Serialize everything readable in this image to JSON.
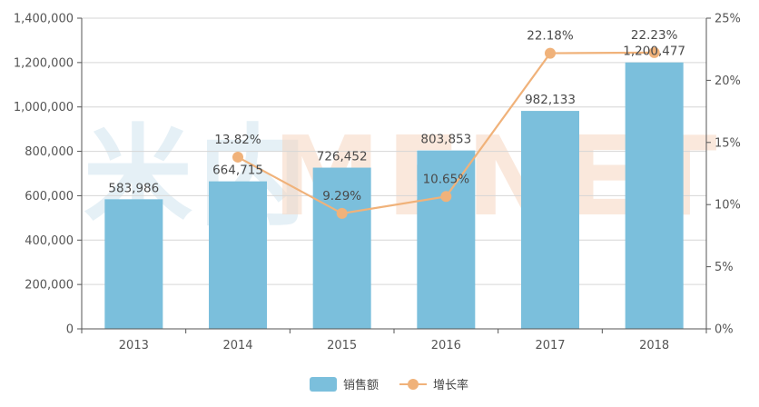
{
  "watermark": {
    "cjk": "米内",
    "latin": "MENET"
  },
  "chart_data": {
    "type": "bar",
    "categories": [
      "2013",
      "2014",
      "2015",
      "2016",
      "2017",
      "2018"
    ],
    "series": [
      {
        "name": "销售额",
        "kind": "bar",
        "axis": "left",
        "color": "#7bbfdc",
        "values": [
          583986,
          664715,
          726452,
          803853,
          982133,
          1200477
        ],
        "labels": [
          "583,986",
          "664,715",
          "726,452",
          "803,853",
          "982,133",
          "1,200,477"
        ]
      },
      {
        "name": "增长率",
        "kind": "line",
        "axis": "right",
        "color": "#f0b27a",
        "values": [
          null,
          13.82,
          9.29,
          10.65,
          22.18,
          22.23
        ],
        "labels": [
          "",
          "13.82%",
          "9.29%",
          "10.65%",
          "22.18%",
          "22.23%"
        ]
      }
    ],
    "ylim_left": [
      0,
      1400000
    ],
    "yticks_left": [
      "0",
      "200,000",
      "400,000",
      "600,000",
      "800,000",
      "1,000,000",
      "1,200,000",
      "1,400,000"
    ],
    "ylim_right": [
      0,
      25
    ],
    "yticks_right": [
      "0%",
      "5%",
      "10%",
      "15%",
      "20%",
      "25%"
    ],
    "grid": true,
    "legend": "bottom-center"
  }
}
